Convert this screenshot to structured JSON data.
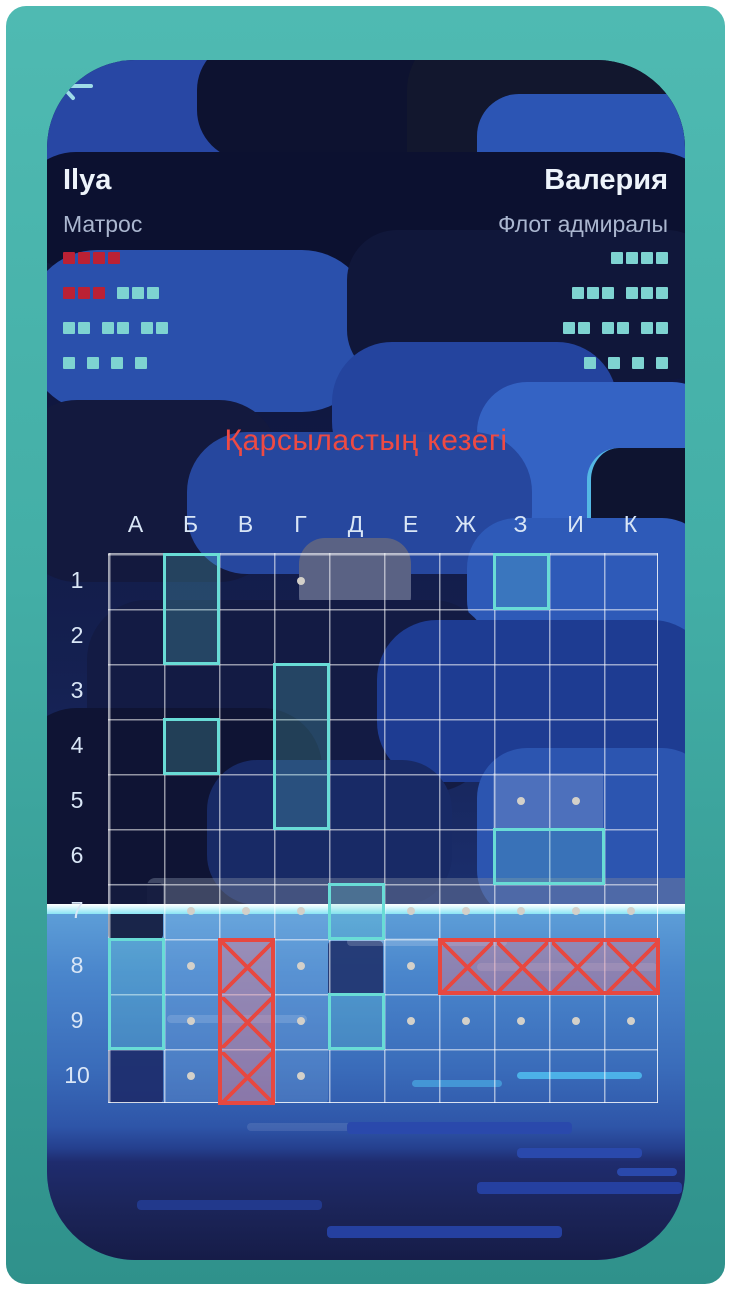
{
  "theme": {
    "frame_teal_top": "#4fbab2",
    "frame_teal_bottom": "#2f918b",
    "ship_alive_teal": "#7ed3d1",
    "ship_dead_red": "#bb2134",
    "ship_border_teal": "#69dcd6",
    "hit_red": "#e74840",
    "miss_dot_gray": "#d3d0c9",
    "title_red": "#ee4a43",
    "back_arrow_cyan": "#9fdbe8"
  },
  "back_button": {
    "icon": "back-arrow"
  },
  "players": {
    "left": {
      "name": "Ilya",
      "rank": "Матрос",
      "fleet": [
        [
          {
            "len": 4,
            "dead": true
          }
        ],
        [
          {
            "len": 3,
            "dead": true
          },
          {
            "len": 3,
            "dead": false
          }
        ],
        [
          {
            "len": 2,
            "dead": false
          },
          {
            "len": 2,
            "dead": false
          },
          {
            "len": 2,
            "dead": false
          }
        ],
        [
          {
            "len": 1,
            "dead": false
          },
          {
            "len": 1,
            "dead": false
          },
          {
            "len": 1,
            "dead": false
          },
          {
            "len": 1,
            "dead": false
          }
        ]
      ]
    },
    "right": {
      "name": "Валерия",
      "rank": "Флот адмиралы",
      "fleet": [
        [
          {
            "len": 4,
            "dead": false
          }
        ],
        [
          {
            "len": 3,
            "dead": false
          },
          {
            "len": 3,
            "dead": false
          }
        ],
        [
          {
            "len": 2,
            "dead": false
          },
          {
            "len": 2,
            "dead": false
          },
          {
            "len": 2,
            "dead": false
          }
        ],
        [
          {
            "len": 1,
            "dead": false
          },
          {
            "len": 1,
            "dead": false
          },
          {
            "len": 1,
            "dead": false
          },
          {
            "len": 1,
            "dead": false
          }
        ]
      ]
    }
  },
  "turn_indicator": "Қарсыластың кезегі",
  "board": {
    "cols": [
      "А",
      "Б",
      "В",
      "Г",
      "Д",
      "Е",
      "Ж",
      "З",
      "И",
      "К"
    ],
    "rows": [
      "1",
      "2",
      "3",
      "4",
      "5",
      "6",
      "7",
      "8",
      "9",
      "10"
    ],
    "ships_alive": [
      {
        "col": "Б",
        "row": 1,
        "len": 2,
        "dir": "v"
      },
      {
        "col": "З",
        "row": 1,
        "len": 1,
        "dir": "h"
      },
      {
        "col": "Г",
        "row": 3,
        "len": 3,
        "dir": "v"
      },
      {
        "col": "Б",
        "row": 4,
        "len": 1,
        "dir": "h"
      },
      {
        "col": "З",
        "row": 6,
        "len": 2,
        "dir": "h"
      },
      {
        "col": "Д",
        "row": 7,
        "len": 1,
        "dir": "h"
      },
      {
        "col": "А",
        "row": 8,
        "len": 2,
        "dir": "v"
      },
      {
        "col": "Д",
        "row": 9,
        "len": 1,
        "dir": "h"
      }
    ],
    "ships_destroyed": [
      {
        "col": "В",
        "row": 8,
        "len": 3,
        "dir": "v"
      },
      {
        "col": "Ж",
        "row": 8,
        "len": 4,
        "dir": "h"
      }
    ],
    "misses": [
      "Г1",
      "З5",
      "И5",
      "Б7",
      "В7",
      "Г7",
      "Е7",
      "Ж7",
      "З7",
      "И7",
      "К7",
      "Б8",
      "Г8",
      "Е8",
      "Б9",
      "Г9",
      "Е9",
      "Ж9",
      "З9",
      "И9",
      "К9",
      "Б10",
      "Г10"
    ],
    "revealed": [
      "З5",
      "И5"
    ]
  }
}
